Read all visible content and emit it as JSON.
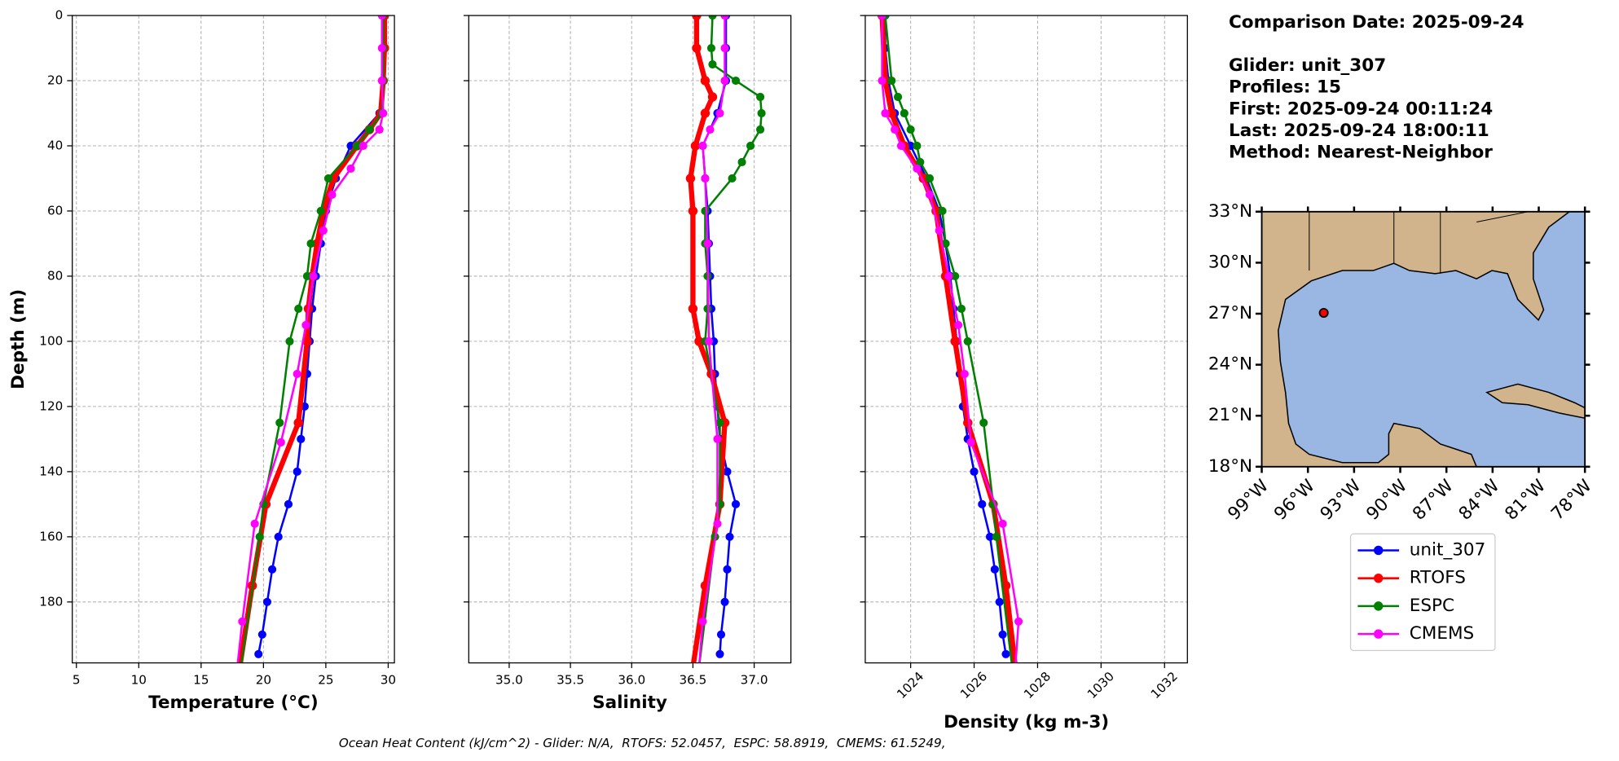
{
  "info": [
    "Comparison Date: 2025-09-24",
    "Glider: unit_307",
    "Profiles: 15",
    "First: 2025-09-24 00:11:24",
    "Last: 2025-09-24 18:00:11",
    "Method: Nearest-Neighbor"
  ],
  "footnote": "Ocean Heat Content (kJ/cm^2) - Glider: N/A,  RTOFS: 52.0457,  ESPC: 58.8919,  CMEMS: 61.5249,",
  "chart_data": [
    {
      "type": "line",
      "xlabel": "Temperature (°C)",
      "ylabel": "Depth (m)",
      "xlim": [
        4.67,
        30.5
      ],
      "xticks": [
        5,
        10,
        15,
        20,
        25,
        30
      ],
      "ylim": [
        198.7,
        0
      ],
      "yticks": [
        0,
        20,
        40,
        60,
        80,
        100,
        120,
        140,
        160,
        180
      ],
      "grid": true,
      "series": [
        {
          "name": "unit_307",
          "color": "#0000ff",
          "depth": [
            0,
            10,
            20,
            30,
            40,
            50,
            60,
            70,
            80,
            90,
            100,
            110,
            120,
            130,
            140,
            150,
            160,
            170,
            180,
            190,
            196
          ],
          "values": [
            29.6,
            29.6,
            29.6,
            29.3,
            27,
            25.8,
            25,
            24.6,
            24.2,
            23.9,
            23.7,
            23.5,
            23.3,
            23.0,
            22.7,
            22.0,
            21.2,
            20.7,
            20.3,
            19.9,
            19.6
          ]
        },
        {
          "name": "RTOFS",
          "color": "#ff0000",
          "depth": [
            0,
            10,
            20,
            30,
            35,
            40,
            50,
            60,
            70,
            80,
            90,
            100,
            125,
            150,
            175,
            200
          ],
          "values": [
            29.7,
            29.7,
            29.6,
            29.4,
            28.5,
            27.5,
            25.6,
            24.8,
            24.3,
            23.9,
            23.6,
            23.5,
            22.8,
            20.2,
            19.1,
            18.1
          ]
        },
        {
          "name": "ESPC",
          "color": "#008000",
          "depth": [
            0,
            10,
            20,
            30,
            35,
            40,
            50,
            60,
            70,
            80,
            90,
            100,
            125,
            150,
            160,
            200
          ],
          "values": [
            29.6,
            29.6,
            29.6,
            29.5,
            28.5,
            27.5,
            25.2,
            24.6,
            23.8,
            23.5,
            22.8,
            22.1,
            21.3,
            20.0,
            19.7,
            18.2
          ]
        },
        {
          "name": "CMEMS",
          "color": "#ff00ff",
          "depth": [
            0,
            10,
            20,
            30,
            35,
            40,
            47,
            55,
            66,
            80,
            95,
            110,
            131,
            156,
            186,
            200
          ],
          "values": [
            29.5,
            29.5,
            29.5,
            29.6,
            29.3,
            28.0,
            27.0,
            25.5,
            24.8,
            24.0,
            23.4,
            22.7,
            21.4,
            19.3,
            18.3,
            17.9
          ]
        }
      ]
    },
    {
      "type": "line",
      "xlabel": "Salinity",
      "xlim": [
        34.67,
        37.3
      ],
      "xticks": [
        {
          "value": 35,
          "label": "35.0"
        },
        35.5,
        {
          "value": 36,
          "label": "36.0"
        },
        36.5,
        {
          "value": 37,
          "label": "37.0"
        }
      ],
      "grid": true,
      "series": [
        {
          "name": "unit_307",
          "color": "#0000ff",
          "depth": [
            0,
            10,
            20,
            30,
            40,
            50,
            60,
            70,
            80,
            90,
            100,
            110,
            120,
            130,
            140,
            150,
            160,
            170,
            180,
            190,
            196
          ],
          "values": [
            36.77,
            36.77,
            36.77,
            36.7,
            36.58,
            36.6,
            36.62,
            36.63,
            36.64,
            36.65,
            36.67,
            36.68,
            36.7,
            36.72,
            36.78,
            36.85,
            36.8,
            36.78,
            36.76,
            36.73,
            36.72
          ]
        },
        {
          "name": "RTOFS",
          "color": "#ff0000",
          "depth": [
            0,
            10,
            20,
            25,
            30,
            40,
            50,
            60,
            90,
            100,
            110,
            125,
            150,
            175,
            200
          ],
          "values": [
            36.53,
            36.53,
            36.6,
            36.66,
            36.6,
            36.52,
            36.48,
            36.5,
            36.5,
            36.55,
            36.65,
            36.76,
            36.72,
            36.6,
            36.5
          ]
        },
        {
          "name": "ESPC",
          "color": "#008000",
          "depth": [
            0,
            10,
            15,
            20,
            25,
            30,
            35,
            40,
            45,
            50,
            60,
            70,
            80,
            90,
            100,
            125,
            150,
            160,
            200
          ],
          "values": [
            36.66,
            36.65,
            36.66,
            36.85,
            37.05,
            37.06,
            37.05,
            36.97,
            36.9,
            36.82,
            36.6,
            36.6,
            36.62,
            36.62,
            36.6,
            36.72,
            36.72,
            36.68,
            36.55
          ]
        },
        {
          "name": "CMEMS",
          "color": "#ff00ff",
          "depth": [
            0,
            10,
            20,
            30,
            35,
            40,
            50,
            70,
            100,
            130,
            156,
            186,
            200
          ],
          "values": [
            36.76,
            36.76,
            36.76,
            36.72,
            36.64,
            36.58,
            36.6,
            36.62,
            36.63,
            36.7,
            36.7,
            36.58,
            36.55
          ]
        }
      ]
    },
    {
      "type": "line",
      "xlabel": "Density (kg m-3)",
      "xlim": [
        1022.57,
        1032.72
      ],
      "xticks": [
        1024,
        1026,
        1028,
        1030,
        1032
      ],
      "grid": true,
      "series": [
        {
          "name": "unit_307",
          "color": "#0000ff",
          "depth": [
            0,
            10,
            20,
            30,
            40,
            50,
            60,
            70,
            80,
            90,
            100,
            110,
            120,
            130,
            140,
            150,
            160,
            170,
            180,
            190,
            196
          ],
          "values": [
            1023.2,
            1023.2,
            1023.3,
            1023.5,
            1024.0,
            1024.5,
            1024.9,
            1025.1,
            1025.25,
            1025.35,
            1025.45,
            1025.55,
            1025.65,
            1025.8,
            1026.0,
            1026.25,
            1026.5,
            1026.65,
            1026.8,
            1026.9,
            1027.0
          ]
        },
        {
          "name": "RTOFS",
          "color": "#ff0000",
          "depth": [
            0,
            20,
            30,
            40,
            50,
            60,
            80,
            100,
            125,
            150,
            175,
            200
          ],
          "values": [
            1023.1,
            1023.2,
            1023.4,
            1023.8,
            1024.4,
            1024.8,
            1025.1,
            1025.4,
            1025.8,
            1026.6,
            1027.0,
            1027.3
          ]
        },
        {
          "name": "ESPC",
          "color": "#008000",
          "depth": [
            0,
            20,
            25,
            30,
            35,
            40,
            45,
            50,
            60,
            70,
            80,
            90,
            100,
            125,
            150,
            160,
            200
          ],
          "values": [
            1023.2,
            1023.4,
            1023.6,
            1023.8,
            1024.0,
            1024.2,
            1024.3,
            1024.6,
            1025.0,
            1025.1,
            1025.4,
            1025.6,
            1025.8,
            1026.3,
            1026.6,
            1026.7,
            1027.2
          ]
        },
        {
          "name": "CMEMS",
          "color": "#ff00ff",
          "depth": [
            0,
            20,
            30,
            35,
            40,
            47,
            55,
            66,
            80,
            95,
            110,
            131,
            156,
            186,
            200
          ],
          "values": [
            1023.1,
            1023.1,
            1023.2,
            1023.5,
            1023.7,
            1024.2,
            1024.6,
            1024.9,
            1025.2,
            1025.5,
            1025.7,
            1025.9,
            1026.9,
            1027.4,
            1027.3
          ]
        }
      ]
    },
    {
      "type": "map",
      "xlim": [
        -99,
        -78
      ],
      "xticks": [
        {
          "value": -99,
          "label": "99°W"
        },
        {
          "value": -96,
          "label": "96°W"
        },
        {
          "value": -93,
          "label": "93°W"
        },
        {
          "value": -90,
          "label": "90°W"
        },
        {
          "value": -87,
          "label": "87°W"
        },
        {
          "value": -84,
          "label": "84°W"
        },
        {
          "value": -81,
          "label": "81°W"
        },
        {
          "value": -78,
          "label": "78°W"
        }
      ],
      "ylim": [
        18,
        33
      ],
      "yticks": [
        {
          "value": 18,
          "label": "18°N"
        },
        {
          "value": 21,
          "label": "21°N"
        },
        {
          "value": 24,
          "label": "24°N"
        },
        {
          "value": 27,
          "label": "27°N"
        },
        {
          "value": 30,
          "label": "30°N"
        },
        {
          "value": 33,
          "label": "33°N"
        }
      ],
      "marker": {
        "lon": -94.97,
        "lat": 27.05,
        "color": "#ff0000"
      }
    }
  ]
}
